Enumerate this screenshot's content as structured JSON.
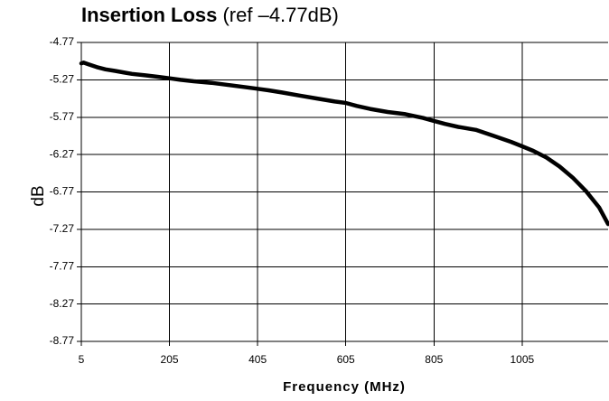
{
  "title": {
    "bold": "Insertion Loss",
    "normal": " (ref –4.77dB)"
  },
  "chart_data": {
    "type": "line",
    "title": "Insertion Loss (ref –4.77dB)",
    "xlabel": "Frequency (MHz)",
    "ylabel": "dB",
    "xlim": [
      5,
      1200
    ],
    "ylim": [
      -8.77,
      -4.77
    ],
    "x_ticks": [
      5,
      205,
      405,
      605,
      805,
      1005
    ],
    "x_tick_labels": [
      "5",
      "205",
      "405",
      "605",
      "805",
      "1005"
    ],
    "y_ticks": [
      -4.77,
      -5.27,
      -5.77,
      -6.27,
      -6.77,
      -7.27,
      -7.77,
      -8.27,
      -8.77
    ],
    "y_tick_labels": [
      "-4.77",
      "-5.27",
      "-5.77",
      "-6.27",
      "-6.77",
      "-7.27",
      "-7.77",
      "-8.27",
      "-8.77"
    ],
    "grid": true,
    "line_color": "#000000",
    "series": [
      {
        "x": [
          5,
          10,
          20,
          40,
          60,
          80,
          100,
          120,
          150,
          180,
          205,
          230,
          260,
          300,
          340,
          380,
          405,
          430,
          460,
          500,
          540,
          580,
          605,
          630,
          660,
          700,
          740,
          780,
          805,
          830,
          860,
          900,
          940,
          980,
          1005,
          1030,
          1060,
          1090,
          1120,
          1150,
          1180,
          1200
        ],
        "y": [
          -5.05,
          -5.04,
          -5.06,
          -5.1,
          -5.13,
          -5.15,
          -5.17,
          -5.19,
          -5.21,
          -5.23,
          -5.25,
          -5.27,
          -5.29,
          -5.31,
          -5.34,
          -5.37,
          -5.39,
          -5.41,
          -5.44,
          -5.48,
          -5.52,
          -5.56,
          -5.58,
          -5.62,
          -5.66,
          -5.7,
          -5.73,
          -5.78,
          -5.82,
          -5.86,
          -5.9,
          -5.94,
          -6.02,
          -6.1,
          -6.16,
          -6.22,
          -6.31,
          -6.43,
          -6.58,
          -6.76,
          -6.98,
          -7.2
        ]
      }
    ]
  }
}
